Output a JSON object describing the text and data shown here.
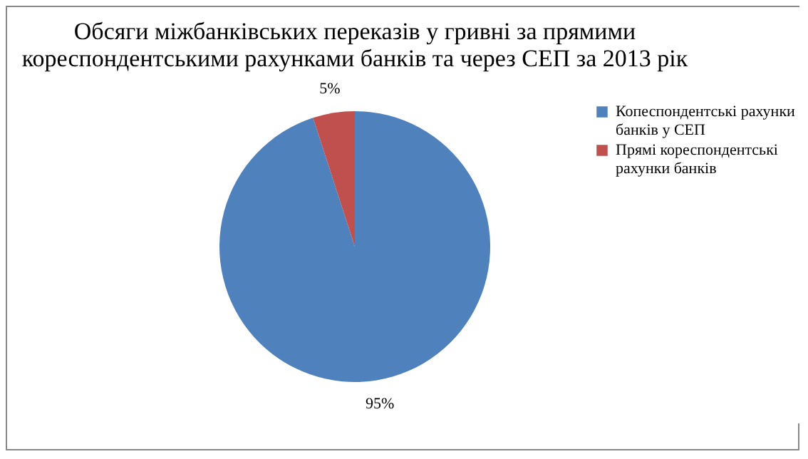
{
  "chart_data": {
    "type": "pie",
    "title": "Обсяги міжбанківських переказів у гривні за прямими кореспондентськими рахунками банків та через СЕП за 2013 рік",
    "categories": [
      "Копеспондентські рахунки банків у СЕП",
      "Прямі кореспондентські рахунки банків"
    ],
    "values": [
      95,
      5
    ],
    "colors": [
      "#4f81bd",
      "#c0504d"
    ],
    "value_labels": [
      "95%",
      "5%"
    ],
    "legend": "right"
  }
}
